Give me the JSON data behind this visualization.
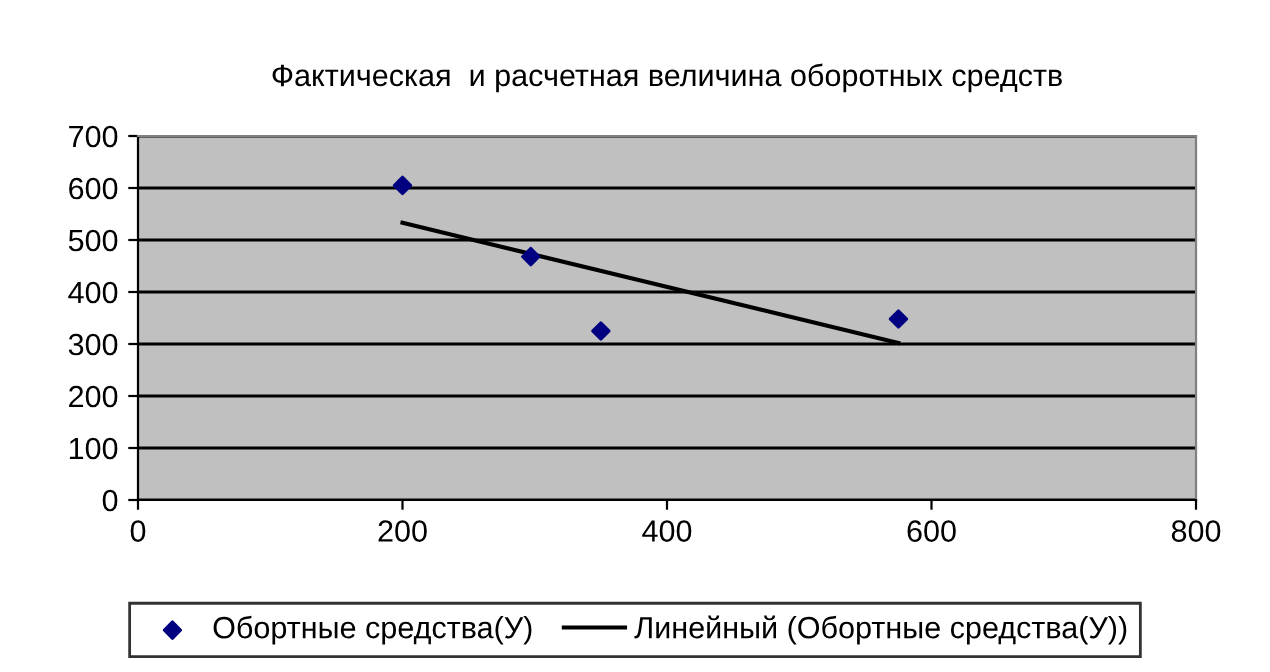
{
  "chart_data": {
    "type": "scatter",
    "title": "Фактическая  и расчетная величина оборотных средств",
    "series": [
      {
        "name": "Обортные средства(У)",
        "color": "#000080",
        "marker": "diamond",
        "x": [
          200,
          297,
          350,
          575
        ],
        "values": [
          605,
          468,
          325,
          348
        ]
      },
      {
        "name": "Линейный (Обортные средства(У))",
        "color": "#000000",
        "type": "line",
        "marker": "none",
        "x": [
          200,
          575
        ],
        "values": [
          533,
          302
        ]
      }
    ],
    "xlim": [
      0,
      800
    ],
    "xticks": [
      0,
      200,
      400,
      600,
      800
    ],
    "ylim": [
      0,
      700
    ],
    "yticks": [
      0,
      100,
      200,
      300,
      400,
      500,
      600,
      700
    ],
    "grid": "y",
    "legend": "bottom"
  }
}
